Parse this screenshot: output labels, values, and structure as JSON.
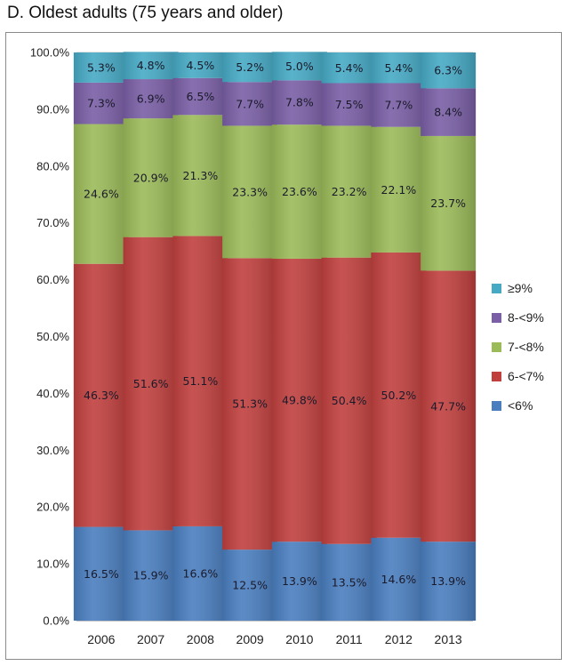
{
  "panel_title": "D.  Oldest adults (75 years and older)",
  "chart_data": {
    "type": "bar",
    "stacked": true,
    "title": "D.  Oldest adults (75 years and older)",
    "categories": [
      "2006",
      "2007",
      "2008",
      "2009",
      "2010",
      "2011",
      "2012",
      "2013"
    ],
    "ylim": [
      0,
      100
    ],
    "yticks": [
      "0.0%",
      "10.0%",
      "20.0%",
      "30.0%",
      "40.0%",
      "50.0%",
      "60.0%",
      "70.0%",
      "80.0%",
      "90.0%",
      "100.0%"
    ],
    "grid": true,
    "legend_position": "right",
    "series": [
      {
        "name": "<6%",
        "color": "#4a7ebf",
        "values": [
          16.5,
          15.9,
          16.6,
          12.5,
          13.9,
          13.5,
          14.6,
          13.9
        ],
        "labels": [
          "16.5%",
          "15.9%",
          "16.6%",
          "12.5%",
          "13.9%",
          "13.5%",
          "14.6%",
          "13.9%"
        ]
      },
      {
        "name": "6-<7%",
        "color": "#c0403e",
        "values": [
          46.3,
          51.6,
          51.1,
          51.3,
          49.8,
          50.4,
          50.2,
          47.7
        ],
        "labels": [
          "46.3%",
          "51.6%",
          "51.1%",
          "51.3%",
          "49.8%",
          "50.4%",
          "50.2%",
          "47.7%"
        ]
      },
      {
        "name": "7-<8%",
        "color": "#9bbb59",
        "values": [
          24.6,
          20.9,
          21.3,
          23.3,
          23.6,
          23.2,
          22.1,
          23.7
        ],
        "labels": [
          "24.6%",
          "20.9%",
          "21.3%",
          "23.3%",
          "23.6%",
          "23.2%",
          "22.1%",
          "23.7%"
        ]
      },
      {
        "name": "8-<9%",
        "color": "#7a5fa6",
        "values": [
          7.3,
          6.9,
          6.5,
          7.7,
          7.8,
          7.5,
          7.7,
          8.4
        ],
        "labels": [
          "7.3%",
          "6.9%",
          "6.5%",
          "7.7%",
          "7.8%",
          "7.5%",
          "7.7%",
          "8.4%"
        ]
      },
      {
        "name": "≥9%",
        "color": "#46aac5",
        "values": [
          5.3,
          4.8,
          4.5,
          5.2,
          5.0,
          5.4,
          5.4,
          6.3
        ],
        "labels": [
          "5.3%",
          "4.8%",
          "4.5%",
          "5.2%",
          "5.0%",
          "5.4%",
          "5.4%",
          "6.3%"
        ]
      }
    ],
    "legend_order": [
      "≥9%",
      "8-<9%",
      "7-<8%",
      "6-<7%",
      "<6%"
    ]
  }
}
